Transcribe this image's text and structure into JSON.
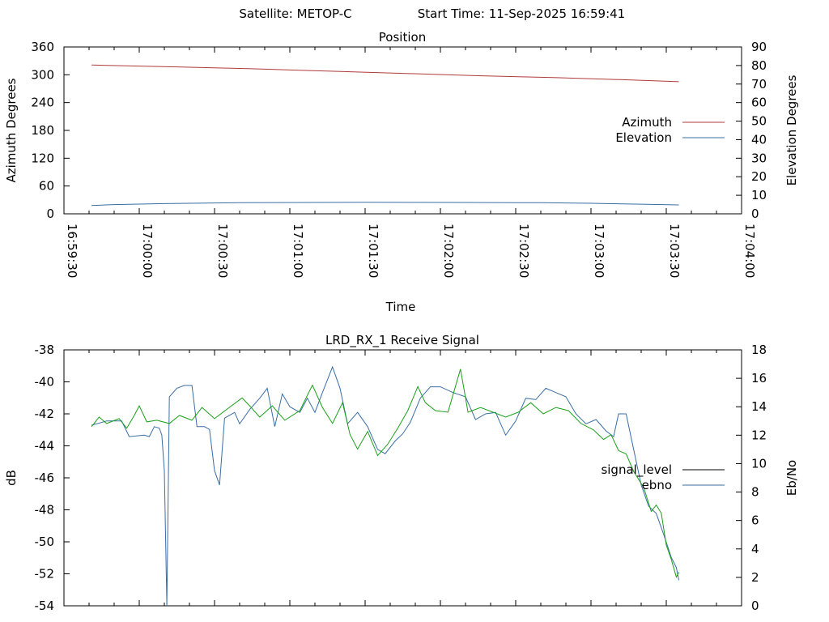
{
  "header": {
    "satellite_text": "Satellite: METOP-C",
    "start_text": "Start Time: 11-Sep-2025 16:59:41"
  },
  "chart_data": [
    {
      "type": "line",
      "title": "Position",
      "xlabel": "Time",
      "ylabel": "Azimuth Degrees",
      "y2label": "Elevation Degrees",
      "x_range": [
        "16:59:30",
        "17:04:00"
      ],
      "ylim": [
        0,
        360
      ],
      "y2lim": [
        0,
        90
      ],
      "x_tick_labels": [
        "16:59:30",
        "17:00:00",
        "17:00:30",
        "17:01:00",
        "17:01:30",
        "17:02:00",
        "17:02:30",
        "17:03:00",
        "17:03:30",
        "17:04:00"
      ],
      "y_tick_labels": [
        "0",
        "60",
        "120",
        "180",
        "240",
        "300",
        "360"
      ],
      "y2_tick_labels": [
        "0",
        "10",
        "20",
        "30",
        "40",
        "50",
        "60",
        "70",
        "80",
        "90"
      ],
      "legend_position": "right",
      "series": [
        {
          "name": "Azimuth",
          "axis": "y",
          "color": "#b03a3a",
          "points": [
            [
              "16:59:41",
              321
            ],
            [
              "17:00:15",
              317
            ],
            [
              "17:00:45",
              313
            ],
            [
              "17:01:15",
              308
            ],
            [
              "17:01:45",
              303
            ],
            [
              "17:02:15",
              298
            ],
            [
              "17:02:45",
              294
            ],
            [
              "17:03:15",
              289
            ],
            [
              "17:03:35",
              285
            ]
          ]
        },
        {
          "name": "Elevation",
          "axis": "y2",
          "color": "#3a6ea5",
          "points": [
            [
              "16:59:41",
              4.5
            ],
            [
              "16:59:50",
              5
            ],
            [
              "17:00:10",
              5.5
            ],
            [
              "17:00:40",
              6
            ],
            [
              "17:01:30",
              6.2
            ],
            [
              "17:02:10",
              6.1
            ],
            [
              "17:02:40",
              6
            ],
            [
              "17:03:00",
              5.7
            ],
            [
              "17:03:20",
              5.2
            ],
            [
              "17:03:35",
              4.8
            ]
          ]
        }
      ]
    },
    {
      "type": "line",
      "title": "LRD_RX_1 Receive Signal",
      "ylabel": "dB",
      "y2label": "Eb/No",
      "x_range": [
        "16:59:30",
        "17:04:00"
      ],
      "ylim": [
        -54,
        -38
      ],
      "y2lim": [
        0,
        18
      ],
      "y_tick_labels": [
        "-54",
        "-52",
        "-50",
        "-48",
        "-46",
        "-44",
        "-42",
        "-40",
        "-38"
      ],
      "y2_tick_labels": [
        "0",
        "2",
        "4",
        "6",
        "8",
        "10",
        "12",
        "14",
        "16",
        "18"
      ],
      "legend_position": "right",
      "legend": [
        {
          "name": "signal_level",
          "color": "#000000"
        },
        {
          "name": "ebno",
          "color": "#3a6ea5"
        }
      ],
      "series": [
        {
          "name": "ebno",
          "axis": "y2",
          "color": "#3a6ea5",
          "points": [
            [
              "16:59:41",
              12.7
            ],
            [
              "16:59:47",
              13.0
            ],
            [
              "16:59:53",
              13.0
            ],
            [
              "16:59:56",
              11.9
            ],
            [
              "17:00:02",
              12.0
            ],
            [
              "17:00:04",
              11.9
            ],
            [
              "17:00:06",
              12.6
            ],
            [
              "17:00:08",
              12.5
            ],
            [
              "17:00:09",
              12.0
            ],
            [
              "17:00:10",
              9.5
            ],
            [
              "17:00:11",
              0.0
            ],
            [
              "17:00:12",
              14.7
            ],
            [
              "17:00:15",
              15.3
            ],
            [
              "17:00:18",
              15.5
            ],
            [
              "17:00:21",
              15.5
            ],
            [
              "17:00:23",
              12.6
            ],
            [
              "17:00:26",
              12.6
            ],
            [
              "17:00:28",
              12.4
            ],
            [
              "17:00:30",
              9.5
            ],
            [
              "17:00:32",
              8.5
            ],
            [
              "17:00:34",
              13.2
            ],
            [
              "17:00:38",
              13.6
            ],
            [
              "17:00:40",
              12.8
            ],
            [
              "17:00:44",
              13.8
            ],
            [
              "17:00:48",
              14.6
            ],
            [
              "17:00:51",
              15.3
            ],
            [
              "17:00:54",
              12.6
            ],
            [
              "17:00:57",
              14.9
            ],
            [
              "17:01:00",
              14.0
            ],
            [
              "17:01:04",
              13.6
            ],
            [
              "17:01:07",
              14.6
            ],
            [
              "17:01:10",
              13.6
            ],
            [
              "17:01:13",
              15.0
            ],
            [
              "17:01:17",
              16.8
            ],
            [
              "17:01:20",
              15.3
            ],
            [
              "17:01:23",
              12.8
            ],
            [
              "17:01:27",
              13.6
            ],
            [
              "17:01:31",
              12.6
            ],
            [
              "17:01:35",
              11.0
            ],
            [
              "17:01:38",
              10.7
            ],
            [
              "17:01:42",
              11.6
            ],
            [
              "17:01:45",
              12.1
            ],
            [
              "17:01:48",
              12.9
            ],
            [
              "17:01:52",
              14.6
            ],
            [
              "17:01:56",
              15.4
            ],
            [
              "17:02:00",
              15.4
            ],
            [
              "17:02:05",
              15.0
            ],
            [
              "17:02:10",
              14.7
            ],
            [
              "17:02:14",
              13.1
            ],
            [
              "17:02:18",
              13.5
            ],
            [
              "17:02:22",
              13.6
            ],
            [
              "17:02:26",
              12.0
            ],
            [
              "17:02:30",
              13.0
            ],
            [
              "17:02:34",
              14.6
            ],
            [
              "17:02:38",
              14.5
            ],
            [
              "17:02:42",
              15.3
            ],
            [
              "17:02:46",
              15.0
            ],
            [
              "17:02:50",
              14.7
            ],
            [
              "17:02:54",
              13.5
            ],
            [
              "17:02:58",
              12.8
            ],
            [
              "17:03:02",
              13.1
            ],
            [
              "17:03:06",
              12.3
            ],
            [
              "17:03:09",
              11.9
            ],
            [
              "17:03:11",
              13.5
            ],
            [
              "17:03:14",
              13.5
            ],
            [
              "17:03:17",
              11.0
            ],
            [
              "17:03:20",
              8.5
            ],
            [
              "17:03:23",
              7.0
            ],
            [
              "17:03:26",
              6.5
            ],
            [
              "17:03:29",
              5.0
            ],
            [
              "17:03:32",
              3.4
            ],
            [
              "17:03:34",
              2.7
            ],
            [
              "17:03:35",
              1.8
            ]
          ]
        },
        {
          "name": "(unlabeled green trace)",
          "axis": "y",
          "color": "#1aa01a",
          "points": [
            [
              "16:59:41",
              -42.8
            ],
            [
              "16:59:44",
              -42.2
            ],
            [
              "16:59:47",
              -42.6
            ],
            [
              "16:59:52",
              -42.3
            ],
            [
              "16:59:55",
              -42.9
            ],
            [
              "16:59:58",
              -42.1
            ],
            [
              "17:00:00",
              -41.5
            ],
            [
              "17:00:03",
              -42.5
            ],
            [
              "17:00:07",
              -42.4
            ],
            [
              "17:00:12",
              -42.6
            ],
            [
              "17:00:16",
              -42.1
            ],
            [
              "17:00:21",
              -42.4
            ],
            [
              "17:00:25",
              -41.6
            ],
            [
              "17:00:30",
              -42.3
            ],
            [
              "17:00:35",
              -41.7
            ],
            [
              "17:00:41",
              -41.0
            ],
            [
              "17:00:44",
              -41.5
            ],
            [
              "17:00:48",
              -42.2
            ],
            [
              "17:00:53",
              -41.5
            ],
            [
              "17:00:58",
              -42.4
            ],
            [
              "17:01:04",
              -41.8
            ],
            [
              "17:01:09",
              -40.2
            ],
            [
              "17:01:13",
              -41.6
            ],
            [
              "17:01:17",
              -42.6
            ],
            [
              "17:01:21",
              -41.3
            ],
            [
              "17:01:24",
              -43.3
            ],
            [
              "17:01:27",
              -44.2
            ],
            [
              "17:01:31",
              -43.1
            ],
            [
              "17:01:35",
              -44.6
            ],
            [
              "17:01:39",
              -43.9
            ],
            [
              "17:01:43",
              -42.9
            ],
            [
              "17:01:47",
              -41.8
            ],
            [
              "17:01:51",
              -40.3
            ],
            [
              "17:01:54",
              -41.3
            ],
            [
              "17:01:58",
              -41.8
            ],
            [
              "17:02:03",
              -41.9
            ],
            [
              "17:02:08",
              -39.2
            ],
            [
              "17:02:11",
              -41.9
            ],
            [
              "17:02:16",
              -41.6
            ],
            [
              "17:02:21",
              -41.9
            ],
            [
              "17:02:26",
              -42.2
            ],
            [
              "17:02:31",
              -41.9
            ],
            [
              "17:02:36",
              -41.3
            ],
            [
              "17:02:41",
              -42.0
            ],
            [
              "17:02:46",
              -41.6
            ],
            [
              "17:02:51",
              -41.8
            ],
            [
              "17:02:56",
              -42.6
            ],
            [
              "17:03:01",
              -43.0
            ],
            [
              "17:03:05",
              -43.6
            ],
            [
              "17:03:08",
              -43.3
            ],
            [
              "17:03:11",
              -44.3
            ],
            [
              "17:03:14",
              -44.5
            ],
            [
              "17:03:17",
              -45.6
            ],
            [
              "17:03:21",
              -46.6
            ],
            [
              "17:03:24",
              -48.1
            ],
            [
              "17:03:26",
              -47.7
            ],
            [
              "17:03:28",
              -48.2
            ],
            [
              "17:03:30",
              -50.2
            ],
            [
              "17:03:32",
              -51.1
            ],
            [
              "17:03:34",
              -52.2
            ],
            [
              "17:03:35",
              -51.9
            ]
          ]
        }
      ]
    }
  ]
}
